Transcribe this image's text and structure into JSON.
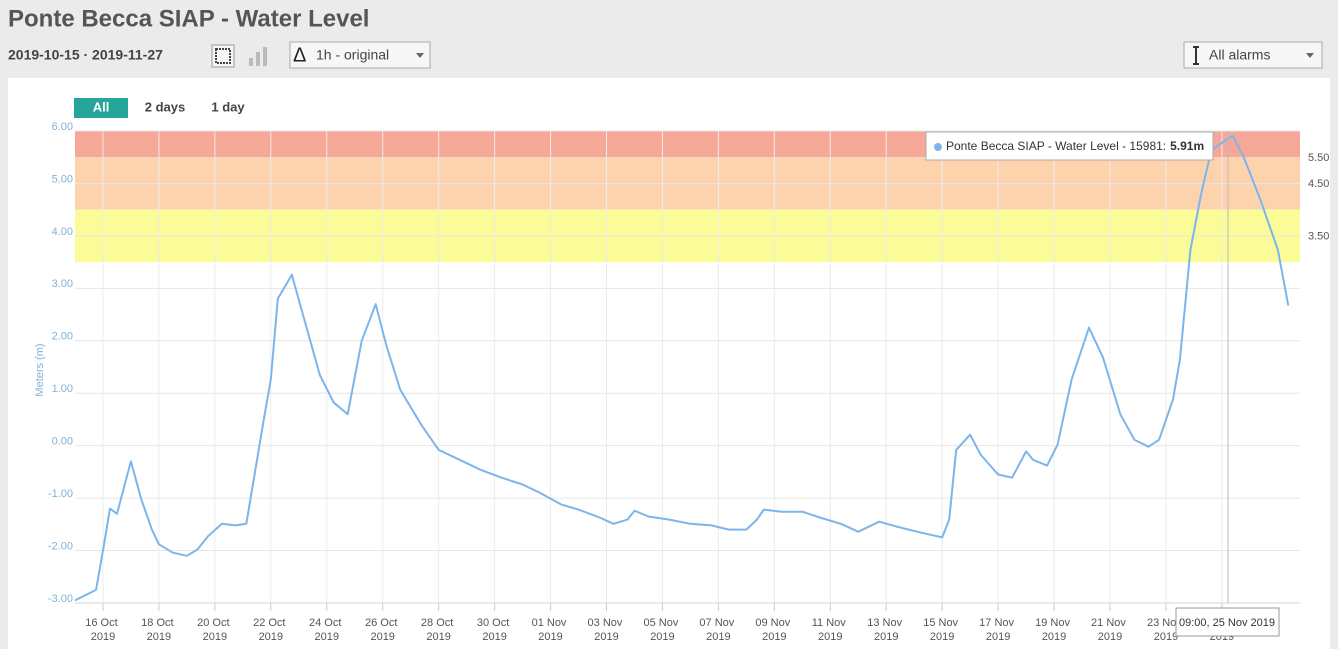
{
  "header": {
    "title": "Ponte Becca SIAP - Water Level",
    "date_range": "2019-10-15 · 2019-11-27",
    "interval_select": "1h - original",
    "alarm_select": "All alarms",
    "range_buttons": [
      "All",
      "2 days",
      "1 day"
    ]
  },
  "chart_data": {
    "type": "line",
    "ylabel": "Meters (m)",
    "color": "#7cb5ec",
    "grid": true,
    "ylim": [
      -3,
      6
    ],
    "yticks": [
      {
        "value": -3,
        "label": "-3.00"
      },
      {
        "value": -2,
        "label": "-2.00"
      },
      {
        "value": -1,
        "label": "-1.00"
      },
      {
        "value": 0,
        "label": "0.00"
      },
      {
        "value": 1,
        "label": "1.00"
      },
      {
        "value": 2,
        "label": "2.00"
      },
      {
        "value": 3,
        "label": "3.00"
      },
      {
        "value": 4,
        "label": "4.00"
      },
      {
        "value": 5,
        "label": "5.00"
      },
      {
        "value": 6,
        "label": "6.00"
      }
    ],
    "bands": [
      {
        "from": 5.5,
        "to": 6,
        "label": "5.50",
        "color": "#f5a898"
      },
      {
        "from": 4.5,
        "to": 5.5,
        "label": "4.50",
        "color": "#fdd3ae"
      },
      {
        "from": 3.5,
        "to": 4.5,
        "label": "3.50",
        "color": "#fbfb98"
      }
    ],
    "xlim": [
      "2019-10-15T00:00",
      "2019-11-27T19:00"
    ],
    "xticks": [
      {
        "value": "2019-10-16T00:00",
        "label": "16 Oct 2019"
      },
      {
        "value": "2019-10-18T00:00",
        "label": "18 Oct 2019"
      },
      {
        "value": "2019-10-20T00:00",
        "label": "20 Oct 2019"
      },
      {
        "value": "2019-10-22T00:00",
        "label": "22 Oct 2019"
      },
      {
        "value": "2019-10-24T00:00",
        "label": "24 Oct 2019"
      },
      {
        "value": "2019-10-26T00:00",
        "label": "26 Oct 2019"
      },
      {
        "value": "2019-10-28T00:00",
        "label": "28 Oct 2019"
      },
      {
        "value": "2019-10-30T00:00",
        "label": "30 Oct 2019"
      },
      {
        "value": "2019-11-01T00:00",
        "label": "01 Nov 2019"
      },
      {
        "value": "2019-11-03T00:00",
        "label": "03 Nov 2019"
      },
      {
        "value": "2019-11-05T00:00",
        "label": "05 Nov 2019"
      },
      {
        "value": "2019-11-07T00:00",
        "label": "07 Nov 2019"
      },
      {
        "value": "2019-11-09T00:00",
        "label": "09 Nov 2019"
      },
      {
        "value": "2019-11-11T00:00",
        "label": "11 Nov 2019"
      },
      {
        "value": "2019-11-13T00:00",
        "label": "13 Nov 2019"
      },
      {
        "value": "2019-11-15T00:00",
        "label": "15 Nov 2019"
      },
      {
        "value": "2019-11-17T00:00",
        "label": "17 Nov 2019"
      },
      {
        "value": "2019-11-19T00:00",
        "label": "19 Nov 2019"
      },
      {
        "value": "2019-11-21T00:00",
        "label": "21 Nov 2019"
      },
      {
        "value": "2019-11-23T00:00",
        "label": "23 Nov 2019"
      },
      {
        "value": "2019-11-25T00:00",
        "label": "25 Nov 2019"
      }
    ],
    "x": [
      "2019-10-15T00:00",
      "2019-10-15T18:00",
      "2019-10-16T00:00",
      "2019-10-16T06:00",
      "2019-10-16T12:00",
      "2019-10-17T00:00",
      "2019-10-17T09:00",
      "2019-10-17T18:00",
      "2019-10-18T00:00",
      "2019-10-18T12:00",
      "2019-10-19T00:00",
      "2019-10-19T09:00",
      "2019-10-19T18:00",
      "2019-10-20T06:00",
      "2019-10-20T18:00",
      "2019-10-21T03:00",
      "2019-10-21T18:00",
      "2019-10-22T00:00",
      "2019-10-22T06:00",
      "2019-10-22T18:00",
      "2019-10-23T00:00",
      "2019-10-23T18:00",
      "2019-10-24T06:00",
      "2019-10-24T18:00",
      "2019-10-25T06:00",
      "2019-10-25T18:00",
      "2019-10-26T03:00",
      "2019-10-26T15:00",
      "2019-10-27T09:00",
      "2019-10-28T00:00",
      "2019-10-28T18:00",
      "2019-10-29T12:00",
      "2019-10-30T06:00",
      "2019-10-31T00:00",
      "2019-10-31T15:00",
      "2019-11-01T09:00",
      "2019-11-02T00:00",
      "2019-11-02T18:00",
      "2019-11-03T06:00",
      "2019-11-03T18:00",
      "2019-11-04T00:00",
      "2019-11-04T12:00",
      "2019-11-05T06:00",
      "2019-11-06T00:00",
      "2019-11-06T18:00",
      "2019-11-07T09:00",
      "2019-11-08T00:00",
      "2019-11-08T09:00",
      "2019-11-08T15:00",
      "2019-11-09T06:00",
      "2019-11-10T00:00",
      "2019-11-10T15:00",
      "2019-11-11T09:00",
      "2019-11-12T00:00",
      "2019-11-12T18:00",
      "2019-11-13T12:00",
      "2019-11-14T06:00",
      "2019-11-15T00:00",
      "2019-11-15T06:00",
      "2019-11-15T12:00",
      "2019-11-16T00:00",
      "2019-11-16T09:00",
      "2019-11-17T00:00",
      "2019-11-17T12:00",
      "2019-11-18T00:00",
      "2019-11-18T06:00",
      "2019-11-18T18:00",
      "2019-11-19T03:00",
      "2019-11-19T15:00",
      "2019-11-20T06:00",
      "2019-11-20T18:00",
      "2019-11-21T09:00",
      "2019-11-21T21:00",
      "2019-11-22T09:00",
      "2019-11-22T18:00",
      "2019-11-23T06:00",
      "2019-11-23T12:00",
      "2019-11-23T21:00",
      "2019-11-24T06:00",
      "2019-11-24T15:00",
      "2019-11-25T09:00",
      "2019-11-25T18:00",
      "2019-11-26T09:00",
      "2019-11-27T00:00",
      "2019-11-27T09:00"
    ],
    "values": [
      -2.95,
      -2.75,
      -2.0,
      -1.2,
      -1.3,
      -0.3,
      -1.03,
      -1.6,
      -1.88,
      -2.04,
      -2.1,
      -1.98,
      -1.73,
      -1.49,
      -1.52,
      -1.49,
      0.5,
      1.26,
      2.8,
      3.26,
      2.78,
      1.35,
      0.82,
      0.6,
      2.0,
      2.7,
      1.92,
      1.07,
      0.4,
      -0.08,
      -0.27,
      -0.46,
      -0.61,
      -0.74,
      -0.9,
      -1.12,
      -1.22,
      -1.37,
      -1.49,
      -1.41,
      -1.24,
      -1.35,
      -1.41,
      -1.49,
      -1.52,
      -1.6,
      -1.6,
      -1.41,
      -1.22,
      -1.26,
      -1.26,
      -1.37,
      -1.49,
      -1.64,
      -1.45,
      -1.56,
      -1.66,
      -1.75,
      -1.41,
      -0.08,
      0.21,
      -0.17,
      -0.55,
      -0.61,
      -0.11,
      -0.27,
      -0.38,
      0.02,
      1.26,
      2.25,
      1.68,
      0.59,
      0.11,
      -0.02,
      0.11,
      0.88,
      1.64,
      3.73,
      4.78,
      5.64,
      5.91,
      5.54,
      4.69,
      3.73,
      2.67
    ],
    "tooltip": {
      "series_label": "Ponte Becca SIAP - Water Level - 15981:",
      "value_label": "5.91m",
      "x_label": "09:00, 25 Nov 2019"
    }
  }
}
